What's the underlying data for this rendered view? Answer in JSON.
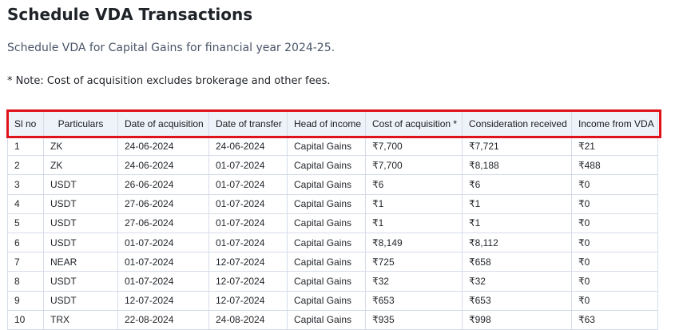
{
  "title": "Schedule VDA Transactions",
  "subtitle": "Schedule VDA for Capital Gains for financial year 2024-25.",
  "note": "* Note: Cost of acquisition excludes brokerage and other fees.",
  "table": {
    "headers": [
      "Sl no",
      "Particulars",
      "Date of acquisition",
      "Date of transfer",
      "Head of income",
      "Cost of acquisition *",
      "Consideration received",
      "Income from VDA"
    ],
    "rows": [
      [
        "1",
        "ZK",
        "24-06-2024",
        "24-06-2024",
        "Capital Gains",
        "₹7,700",
        "₹7,721",
        "₹21"
      ],
      [
        "2",
        "ZK",
        "24-06-2024",
        "01-07-2024",
        "Capital Gains",
        "₹7,700",
        "₹8,188",
        "₹488"
      ],
      [
        "3",
        "USDT",
        "26-06-2024",
        "01-07-2024",
        "Capital Gains",
        "₹6",
        "₹6",
        "₹0"
      ],
      [
        "4",
        "USDT",
        "27-06-2024",
        "01-07-2024",
        "Capital Gains",
        "₹1",
        "₹1",
        "₹0"
      ],
      [
        "5",
        "USDT",
        "27-06-2024",
        "01-07-2024",
        "Capital Gains",
        "₹1",
        "₹1",
        "₹0"
      ],
      [
        "6",
        "USDT",
        "01-07-2024",
        "01-07-2024",
        "Capital Gains",
        "₹8,149",
        "₹8,112",
        "₹0"
      ],
      [
        "7",
        "NEAR",
        "01-07-2024",
        "12-07-2024",
        "Capital Gains",
        "₹725",
        "₹658",
        "₹0"
      ],
      [
        "8",
        "USDT",
        "01-07-2024",
        "12-07-2024",
        "Capital Gains",
        "₹32",
        "₹32",
        "₹0"
      ],
      [
        "9",
        "USDT",
        "12-07-2024",
        "12-07-2024",
        "Capital Gains",
        "₹653",
        "₹653",
        "₹0"
      ],
      [
        "10",
        "TRX",
        "22-08-2024",
        "24-08-2024",
        "Capital Gains",
        "₹935",
        "₹998",
        "₹63"
      ]
    ]
  },
  "colors": {
    "highlight": "#e0121a",
    "header_bg": "#eef2f9",
    "border": "#d5dce8"
  }
}
